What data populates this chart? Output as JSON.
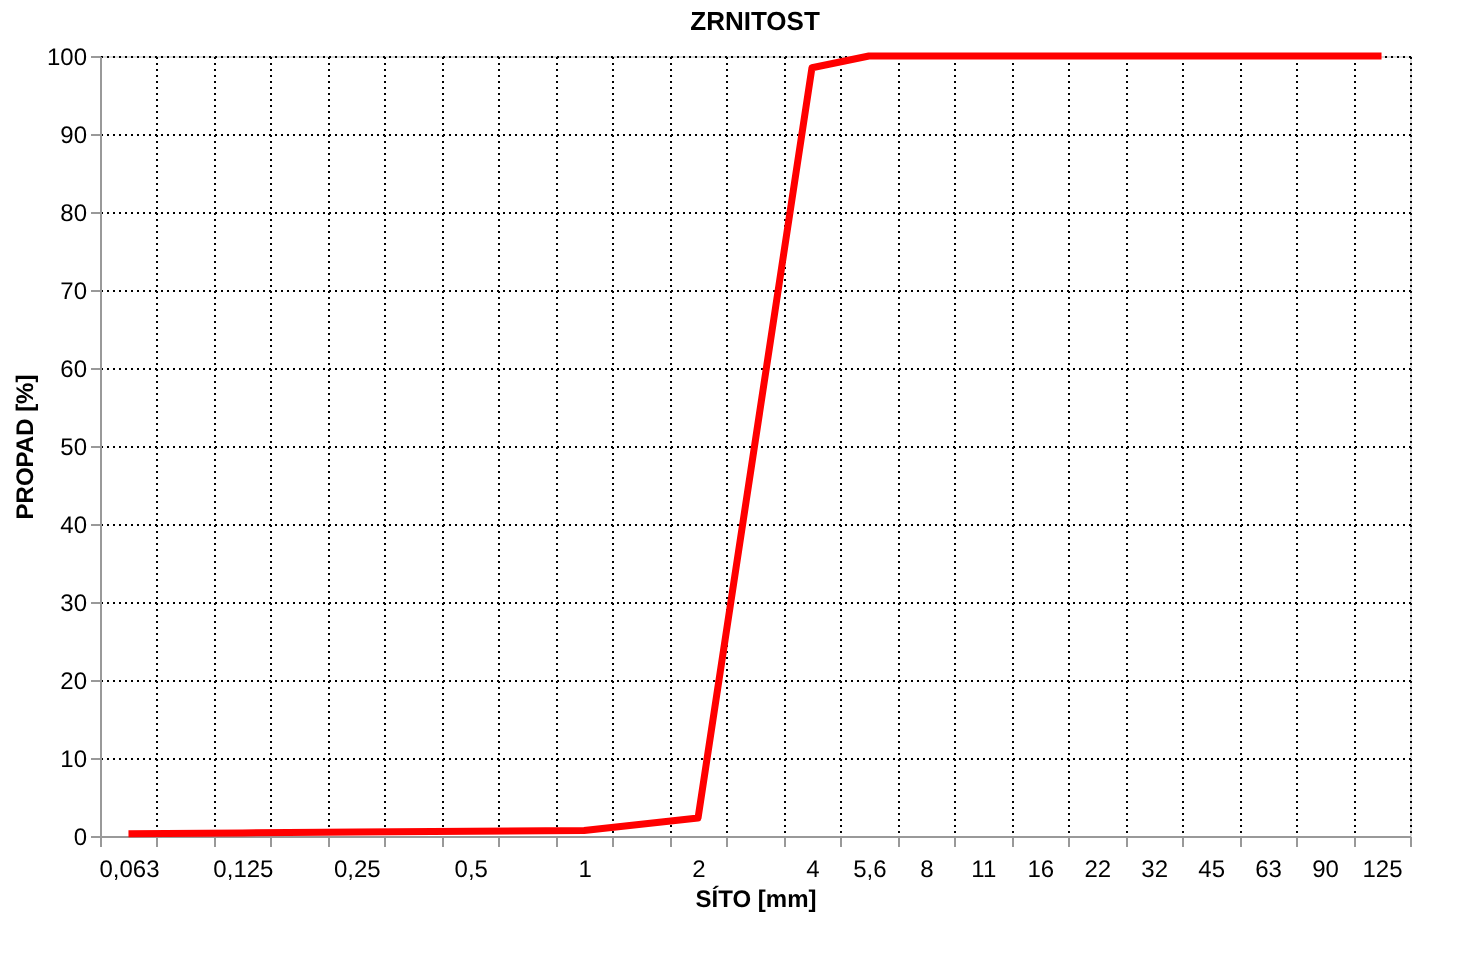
{
  "chart_data": {
    "type": "line",
    "title": "ZRNITOST",
    "xlabel": "SÍTO [mm]",
    "ylabel": "PROPAD [%]",
    "categories": [
      "0,063",
      null,
      "0,125",
      null,
      "0,25",
      null,
      "0,5",
      null,
      "1",
      null,
      "2",
      null,
      "4",
      "5,6",
      "8",
      "11",
      "16",
      "22",
      "32",
      "45",
      "63",
      "90",
      "125"
    ],
    "series": [
      {
        "color": "#ff0000",
        "values": [
          0.3,
          null,
          0.4,
          null,
          0.5,
          null,
          0.6,
          null,
          0.7,
          null,
          2.3,
          null,
          98.5,
          100,
          100,
          100,
          100,
          100,
          100,
          100,
          100,
          100,
          100
        ]
      }
    ],
    "ylim": [
      0,
      100
    ],
    "yticks": [
      0,
      10,
      20,
      30,
      40,
      50,
      60,
      70,
      80,
      90,
      100
    ],
    "grid": true,
    "legend": false,
    "marker": "none",
    "line_style": "solid"
  }
}
